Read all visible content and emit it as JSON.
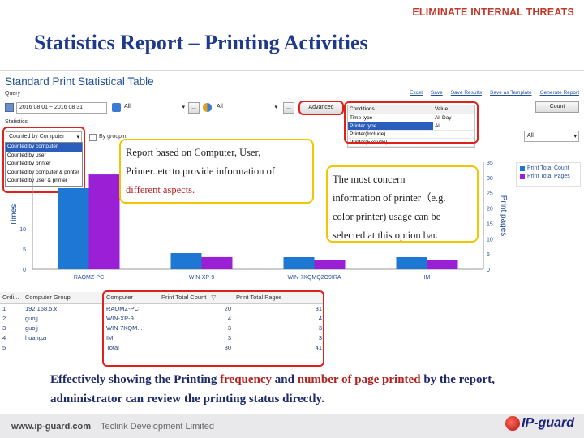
{
  "header": {
    "tagline": "ELIMINATE INTERNAL THREATS",
    "title": "Statistics Report – Printing Activities"
  },
  "app": {
    "title": "Standard Print Statistical Table",
    "links": [
      "Excel",
      "Save",
      "Save Results",
      "Save as Template",
      "Generate Report"
    ],
    "query_label": "Query",
    "date_range": "2016 08 01 ~ 2016 08 31",
    "computer_value": "All",
    "user_value": "All",
    "advanced_label": "Advanced",
    "ellipsis": "...",
    "statistics_label": "Statistics",
    "stat_select": "Counted by Computer",
    "groupby_label": "By groupin",
    "stat_options": [
      "Counted by computer",
      "Counted by user",
      "Counted by printer",
      "Counted by computer & printer",
      "Counted by user & printer"
    ],
    "conditions": {
      "headers": [
        "Conditions",
        "Value"
      ],
      "rows": [
        {
          "name": "Time type",
          "value": "All Day"
        },
        {
          "name": "Printer type",
          "value": "All"
        },
        {
          "name": "Printer(Include)",
          "value": ""
        },
        {
          "name": "Printer(Exclude)",
          "value": ""
        }
      ]
    },
    "count_button": "Count",
    "all_select": "All"
  },
  "callouts": {
    "left": [
      "Report based on Computer, User,",
      "Printer..etc to provide information of",
      "different aspects."
    ],
    "right": [
      "The most concern",
      "information of printer（e.g.",
      "color printer) usage can be",
      "selected at this option bar."
    ]
  },
  "chart_data": {
    "type": "bar",
    "categories": [
      "RAOMZ-PC",
      "WIN-XP-9",
      "WIN-7KQMQ2O9IRA",
      "IM"
    ],
    "series": [
      {
        "name": "Print Total Count",
        "values": [
          20,
          4,
          3,
          3
        ],
        "color": "#1f77d4"
      },
      {
        "name": "Print Total Pages",
        "values": [
          31,
          4,
          3,
          3
        ],
        "color": "#9b1fd4"
      }
    ],
    "ylabel": "Times",
    "y2label": "Print pages",
    "ylim": [
      0,
      20
    ],
    "y2lim": [
      0,
      35
    ],
    "yticks": [
      "0",
      "5",
      "10"
    ],
    "y2ticks": [
      "0",
      "5",
      "10",
      "15",
      "20",
      "25",
      "30",
      "35"
    ],
    "legend_position": "right"
  },
  "table": {
    "headers": [
      "Ordi...",
      "Computer Group",
      "Computer",
      "Print Total Count",
      "Print Total Pages"
    ],
    "rows": [
      [
        "1",
        "192.168.5.x",
        "RAOMZ-PC",
        "20",
        "31"
      ],
      [
        "2",
        "guojj",
        "WIN-XP-9",
        "4",
        "4"
      ],
      [
        "3",
        "guojj",
        "WIN-7KQM...",
        "3",
        "3"
      ],
      [
        "4",
        "huangzr",
        "IM",
        "3",
        "3"
      ],
      [
        "5",
        "",
        "Total",
        "30",
        "41"
      ]
    ]
  },
  "caption": {
    "part1": "Effectively showing the Printing ",
    "hl1": "frequency",
    "part2": " and ",
    "hl2": "number of page printed",
    "part3": " by the report, administrator can review the printing status directly."
  },
  "footer": {
    "url": "www.ip-guard.com",
    "company": "Teclink Development Limited",
    "logo_text": "IP-guard"
  },
  "colors": {
    "title": "#1f3a8a",
    "accent_red": "#c0392b",
    "callout_border": "#f2c500",
    "highlight_box": "#e0201a"
  }
}
